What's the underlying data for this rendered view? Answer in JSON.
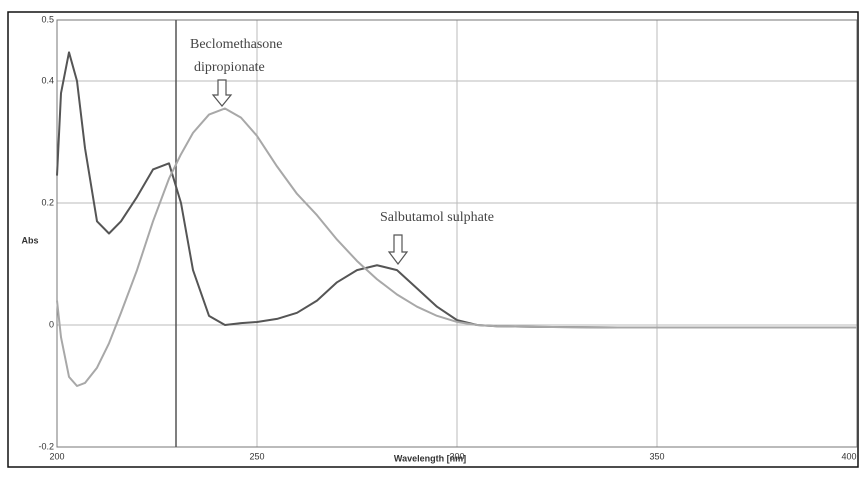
{
  "chart_data": {
    "type": "line",
    "x_label": "Wavelength [nm]",
    "y_label": "Abs",
    "x": [
      200,
      201,
      203,
      205,
      207,
      210,
      213,
      216,
      220,
      224,
      228,
      231,
      234,
      238,
      242,
      246,
      250,
      255,
      260,
      265,
      270,
      275,
      280,
      285,
      290,
      295,
      300,
      305,
      310,
      320,
      340,
      360,
      380,
      400
    ],
    "series": [
      {
        "name": "Salbutamol sulphate",
        "color": "#555555",
        "values": [
          0.245,
          0.38,
          0.447,
          0.4,
          0.29,
          0.17,
          0.15,
          0.17,
          0.21,
          0.255,
          0.265,
          0.2,
          0.09,
          0.015,
          0.0,
          0.003,
          0.005,
          0.01,
          0.02,
          0.04,
          0.07,
          0.09,
          0.098,
          0.09,
          0.06,
          0.03,
          0.008,
          0.0,
          -0.002,
          -0.003,
          -0.004,
          -0.004,
          -0.004,
          -0.004
        ]
      },
      {
        "name": "Beclomethasone dipropionate",
        "color": "#a8a8a8",
        "values": [
          0.04,
          -0.02,
          -0.085,
          -0.1,
          -0.095,
          -0.07,
          -0.03,
          0.02,
          0.09,
          0.17,
          0.24,
          0.28,
          0.315,
          0.345,
          0.355,
          0.34,
          0.31,
          0.26,
          0.215,
          0.18,
          0.14,
          0.105,
          0.075,
          0.05,
          0.03,
          0.015,
          0.005,
          0.0,
          -0.002,
          -0.003,
          -0.004,
          -0.004,
          -0.004,
          -0.004
        ]
      }
    ],
    "annotations": [
      "Beclomethasone",
      "dipropionate",
      "Salbutamol sulphate"
    ],
    "xlim": [
      200,
      400
    ],
    "xticks": [
      200,
      250,
      300,
      350,
      400
    ],
    "ylim": [
      -0.2,
      0.5
    ],
    "yticks": [
      -0.2,
      0,
      0.2,
      0.4,
      0.5
    ],
    "grid": true
  }
}
